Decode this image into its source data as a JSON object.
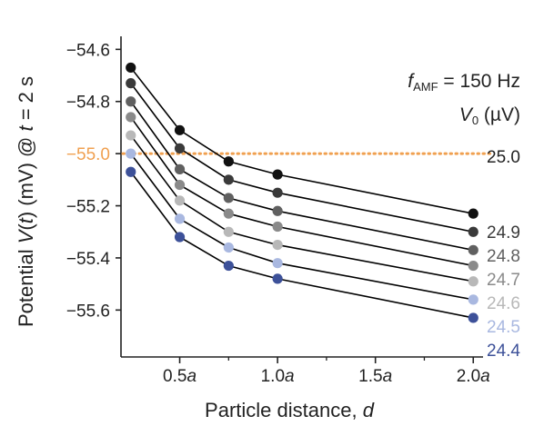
{
  "chart_data": {
    "type": "line",
    "xlabel_main": "Particle distance, ",
    "xlabel_var": "d",
    "ylabel_pre": "Potential ",
    "ylabel_V": "V",
    "ylabel_mid1": "(",
    "ylabel_t1": "t",
    "ylabel_mid2": ") (mV) @ ",
    "ylabel_t2": "t",
    "ylabel_post": " = 2 s",
    "ylim": [
      -55.78,
      -54.55
    ],
    "y_ticks": [
      -54.6,
      -54.8,
      -55.0,
      -55.2,
      -55.4,
      -55.6
    ],
    "y_tick_labels": [
      "−54.6",
      "−54.8",
      "−55.0",
      "−55.2",
      "−55.4",
      "−55.6"
    ],
    "x_ticks": [
      0.5,
      1.0,
      1.5,
      2.0
    ],
    "x_tick_labels": [
      {
        "num": "0.5",
        "unit": "a"
      },
      {
        "num": "1.0",
        "unit": "a"
      },
      {
        "num": "1.5",
        "unit": "a"
      },
      {
        "num": "2.0",
        "unit": "a"
      }
    ],
    "x_minor_ticks": [
      0.75,
      1.25,
      1.75
    ],
    "xlim": [
      0.2,
      2.05
    ],
    "x": [
      0.25,
      0.5,
      0.75,
      1.0,
      2.0
    ],
    "reference_line": {
      "y": -55.0,
      "color": "#f0a050"
    },
    "legend_title_line1": {
      "f": "f",
      "sub": "AMF",
      "rest": " = 150 Hz"
    },
    "legend_title_line2": {
      "v": "V",
      "sub": "0",
      "rest": " (µV)"
    },
    "series": [
      {
        "name": "25.0",
        "color": "#111111",
        "values": [
          -54.67,
          -54.91,
          -55.03,
          -55.08,
          -55.23
        ]
      },
      {
        "name": "24.9",
        "color": "#3a3a3a",
        "values": [
          -54.73,
          -54.98,
          -55.1,
          -55.15,
          -55.3
        ]
      },
      {
        "name": "24.8",
        "color": "#606060",
        "values": [
          -54.8,
          -55.06,
          -55.17,
          -55.22,
          -55.37
        ]
      },
      {
        "name": "24.7",
        "color": "#8a8a8a",
        "values": [
          -54.86,
          -55.12,
          -55.23,
          -55.28,
          -55.43
        ]
      },
      {
        "name": "24.6",
        "color": "#b8b8b8",
        "values": [
          -54.93,
          -55.18,
          -55.3,
          -55.35,
          -55.49
        ]
      },
      {
        "name": "24.5",
        "color": "#a9b8e0",
        "values": [
          -55.0,
          -55.25,
          -55.36,
          -55.42,
          -55.56
        ]
      },
      {
        "name": "24.4",
        "color": "#3d5199",
        "values": [
          -55.07,
          -55.32,
          -55.43,
          -55.48,
          -55.63
        ]
      }
    ]
  }
}
